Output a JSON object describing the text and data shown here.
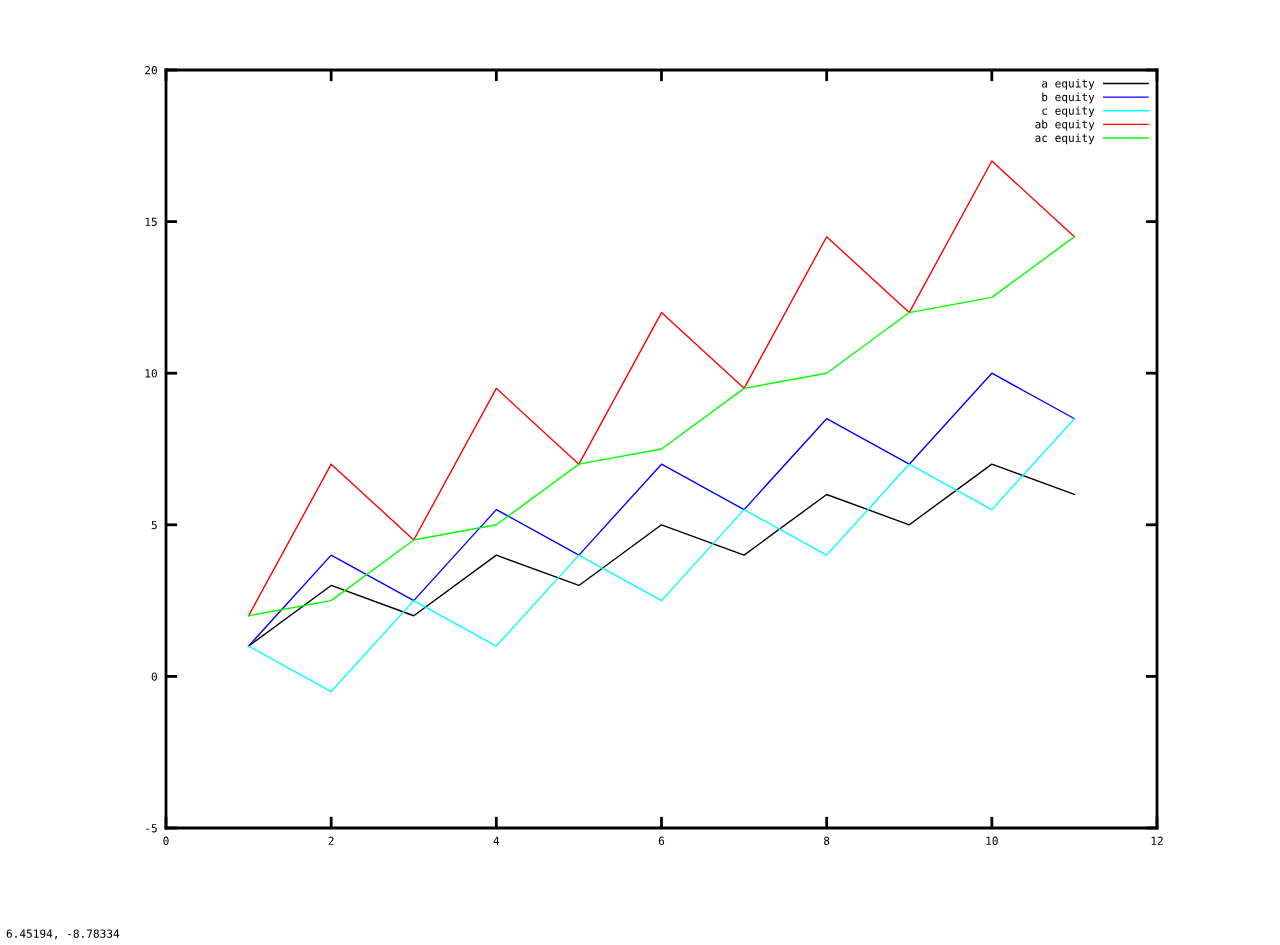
{
  "chart_data": {
    "type": "line",
    "x": [
      1,
      2,
      3,
      4,
      5,
      6,
      7,
      8,
      9,
      10,
      11
    ],
    "series": [
      {
        "name": "a equity",
        "color": "#000000",
        "values": [
          1,
          3,
          2,
          4,
          3,
          5,
          4,
          6,
          5,
          7,
          6
        ]
      },
      {
        "name": "b equity",
        "color": "#0000ff",
        "values": [
          1,
          4,
          2.5,
          5.5,
          4,
          7,
          5.5,
          8.5,
          7,
          10,
          8.5
        ]
      },
      {
        "name": "c equity",
        "color": "#00ffff",
        "values": [
          1,
          -0.5,
          2.5,
          1,
          4,
          2.5,
          5.5,
          4,
          7,
          5.5,
          8.5
        ]
      },
      {
        "name": "ab equity",
        "color": "#ff0000",
        "values": [
          2,
          7,
          4.5,
          9.5,
          7,
          12,
          9.5,
          14.5,
          12,
          17,
          14.5
        ]
      },
      {
        "name": "ac equity",
        "color": "#00ff00",
        "values": [
          2,
          2.5,
          4.5,
          5,
          7,
          7.5,
          9.5,
          10,
          12,
          12.5,
          14.5
        ]
      }
    ],
    "xlim": [
      0,
      12
    ],
    "xticks": [
      0,
      2,
      4,
      6,
      8,
      10,
      12
    ],
    "ylim": [
      -5,
      20
    ],
    "yticks": [
      -5,
      0,
      5,
      10,
      15,
      20
    ],
    "grid": false,
    "legend": "top right",
    "marker": "none",
    "line_style": "solid",
    "annotations": [
      "6.45194, -8.78334"
    ]
  }
}
